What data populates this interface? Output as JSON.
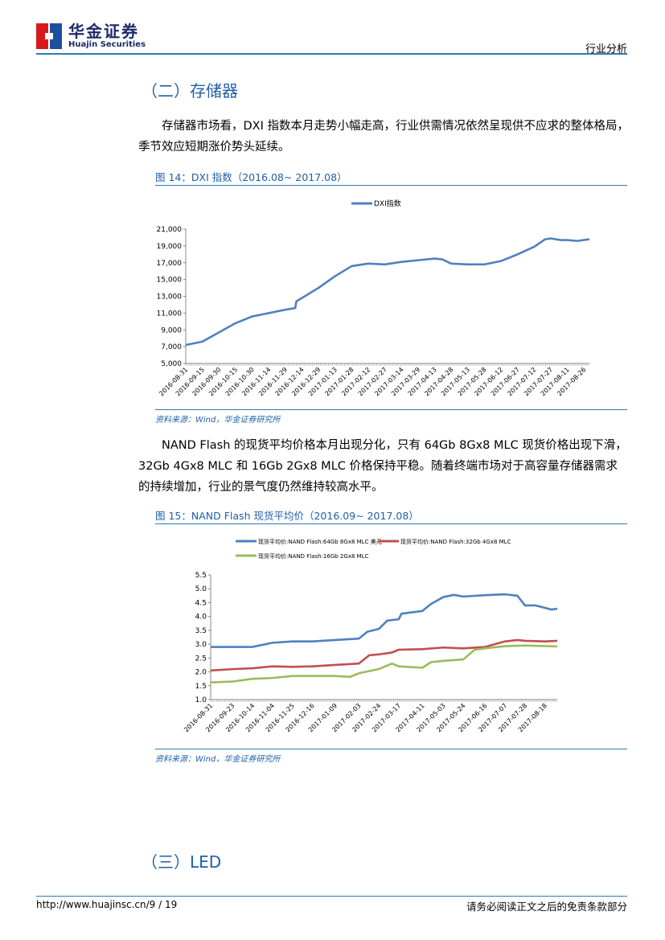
{
  "header": {
    "logo_cn": "华金证券",
    "logo_en": "Huajin Securities",
    "section": "行业分析"
  },
  "section2": {
    "title": "（二）存储器",
    "para": "存储器市场看，DXI 指数本月走势小幅走高，行业供需情况依然呈现供不应求的整体格局，季节效应短期涨价势头延续。"
  },
  "fig14": {
    "caption": "图 14：DXI 指数（2016.08~ 2017.08）",
    "source": "资料来源：Wind，华金证券研究所"
  },
  "para2": "NAND Flash 的现货平均价格本月出现分化，只有 64Gb 8Gx8 MLC 现货价格出现下滑，32Gb 4Gx8 MLC 和 16Gb 2Gx8 MLC 价格保持平稳。随着终端市场对于高容量存储器需求的持续增加，行业的景气度仍然维持较高水平。",
  "fig15": {
    "caption": "图 15：NAND Flash 现货平均价（2016.09~ 2017.08）",
    "source": "资料来源：Wind，华金证券研究所"
  },
  "section3": {
    "title": "（三）LED"
  },
  "footer": {
    "url": "http://www.huajinsc.cn/9 / 19",
    "disclaimer": "请务必阅读正文之后的免责条款部分"
  },
  "chart_data": [
    {
      "type": "line",
      "legend_position": "top",
      "grid": false,
      "ylim": [
        5000,
        21000
      ],
      "yticks": [
        "5,000",
        "7,000",
        "9,000",
        "11,000",
        "13,000",
        "15,000",
        "17,000",
        "19,000",
        "21,000"
      ],
      "xticks": [
        "2016-08-31",
        "2016-09-15",
        "2016-09-30",
        "2016-10-15",
        "2016-10-30",
        "2016-11-14",
        "2016-11-29",
        "2016-12-14",
        "2016-12-29",
        "2017-01-13",
        "2017-01-28",
        "2017-02-12",
        "2017-02-27",
        "2017-03-14",
        "2017-03-29",
        "2017-04-13",
        "2017-04-28",
        "2017-05-13",
        "2017-05-28",
        "2017-06-12",
        "2017-06-27",
        "2017-07-12",
        "2017-07-27",
        "2017-08-11",
        "2017-08-26"
      ],
      "x_range": [
        "2016-08-31",
        "2017-08-31"
      ],
      "series": [
        {
          "name": "DXI指数",
          "color": "#4f81bd",
          "points": [
            [
              "2016-08-31",
              7200
            ],
            [
              "2016-09-15",
              7600
            ],
            [
              "2016-09-30",
              8700
            ],
            [
              "2016-10-15",
              9800
            ],
            [
              "2016-10-30",
              10600
            ],
            [
              "2016-11-14",
              11000
            ],
            [
              "2016-11-29",
              11400
            ],
            [
              "2016-12-08",
              11600
            ],
            [
              "2016-12-09",
              12400
            ],
            [
              "2016-12-14",
              12800
            ],
            [
              "2016-12-29",
              14000
            ],
            [
              "2017-01-13",
              15400
            ],
            [
              "2017-01-28",
              16600
            ],
            [
              "2017-02-12",
              16900
            ],
            [
              "2017-02-27",
              16800
            ],
            [
              "2017-03-14",
              17100
            ],
            [
              "2017-03-29",
              17300
            ],
            [
              "2017-04-13",
              17500
            ],
            [
              "2017-04-20",
              17400
            ],
            [
              "2017-04-28",
              16900
            ],
            [
              "2017-05-13",
              16800
            ],
            [
              "2017-05-28",
              16800
            ],
            [
              "2017-06-12",
              17200
            ],
            [
              "2017-06-27",
              18000
            ],
            [
              "2017-07-12",
              18900
            ],
            [
              "2017-07-22",
              19800
            ],
            [
              "2017-07-27",
              19900
            ],
            [
              "2017-08-05",
              19700
            ],
            [
              "2017-08-11",
              19700
            ],
            [
              "2017-08-20",
              19600
            ],
            [
              "2017-08-31",
              19800
            ]
          ]
        }
      ]
    },
    {
      "type": "line",
      "legend_position": "top",
      "grid": false,
      "ylim": [
        1.0,
        5.5
      ],
      "yticks": [
        "1.0",
        "1.5",
        "2.0",
        "2.5",
        "3.0",
        "3.5",
        "4.0",
        "4.5",
        "5.0",
        "5.5"
      ],
      "xticks": [
        "2016-08-31",
        "2016-09-23",
        "2016-10-14",
        "2016-11-04",
        "2016-11-25",
        "2016-12-16",
        "2017-01-09",
        "2017-02-03",
        "2017-02-24",
        "2017-03-17",
        "2017-04-11",
        "2017-05-03",
        "2017-05-24",
        "2017-06-16",
        "2017-07-07",
        "2017-07-28",
        "2017-08-18"
      ],
      "x_range": [
        "2016-08-31",
        "2017-08-31"
      ],
      "series": [
        {
          "name": "现货平均价:NAND Flash:64Gb 8Gx8 MLC 美元",
          "color": "#4f81bd",
          "points": [
            [
              "2016-08-31",
              2.9
            ],
            [
              "2016-09-23",
              2.9
            ],
            [
              "2016-10-14",
              2.9
            ],
            [
              "2016-11-04",
              3.05
            ],
            [
              "2016-11-25",
              3.1
            ],
            [
              "2016-12-16",
              3.1
            ],
            [
              "2017-01-09",
              3.15
            ],
            [
              "2017-02-03",
              3.2
            ],
            [
              "2017-02-12",
              3.45
            ],
            [
              "2017-02-24",
              3.55
            ],
            [
              "2017-03-05",
              3.85
            ],
            [
              "2017-03-17",
              3.9
            ],
            [
              "2017-03-20",
              4.1
            ],
            [
              "2017-04-11",
              4.2
            ],
            [
              "2017-04-20",
              4.45
            ],
            [
              "2017-05-03",
              4.7
            ],
            [
              "2017-05-14",
              4.78
            ],
            [
              "2017-05-24",
              4.72
            ],
            [
              "2017-06-16",
              4.77
            ],
            [
              "2017-07-07",
              4.8
            ],
            [
              "2017-07-20",
              4.75
            ],
            [
              "2017-07-28",
              4.4
            ],
            [
              "2017-08-08",
              4.4
            ],
            [
              "2017-08-25",
              4.25
            ],
            [
              "2017-08-31",
              4.28
            ]
          ]
        },
        {
          "name": "现货平均价:NAND Flash:32Gb 4Gx8 MLC",
          "color": "#c0504d",
          "points": [
            [
              "2016-08-31",
              2.05
            ],
            [
              "2016-09-23",
              2.1
            ],
            [
              "2016-10-14",
              2.13
            ],
            [
              "2016-11-04",
              2.2
            ],
            [
              "2016-11-25",
              2.18
            ],
            [
              "2016-12-16",
              2.2
            ],
            [
              "2017-01-09",
              2.25
            ],
            [
              "2017-02-03",
              2.3
            ],
            [
              "2017-02-14",
              2.6
            ],
            [
              "2017-02-24",
              2.63
            ],
            [
              "2017-03-10",
              2.7
            ],
            [
              "2017-03-17",
              2.8
            ],
            [
              "2017-04-11",
              2.82
            ],
            [
              "2017-05-03",
              2.88
            ],
            [
              "2017-05-24",
              2.85
            ],
            [
              "2017-06-16",
              2.9
            ],
            [
              "2017-07-07",
              3.1
            ],
            [
              "2017-07-20",
              3.15
            ],
            [
              "2017-07-28",
              3.12
            ],
            [
              "2017-08-18",
              3.1
            ],
            [
              "2017-08-31",
              3.12
            ]
          ]
        },
        {
          "name": "现货平均价:NAND Flash:16Gb 2Gx8 MLC",
          "color": "#9bbb59",
          "points": [
            [
              "2016-08-31",
              1.62
            ],
            [
              "2016-09-23",
              1.65
            ],
            [
              "2016-10-14",
              1.75
            ],
            [
              "2016-11-04",
              1.78
            ],
            [
              "2016-11-25",
              1.85
            ],
            [
              "2016-12-16",
              1.85
            ],
            [
              "2017-01-09",
              1.85
            ],
            [
              "2017-01-25",
              1.82
            ],
            [
              "2017-02-03",
              1.95
            ],
            [
              "2017-02-24",
              2.1
            ],
            [
              "2017-03-10",
              2.3
            ],
            [
              "2017-03-17",
              2.2
            ],
            [
              "2017-04-11",
              2.15
            ],
            [
              "2017-04-20",
              2.35
            ],
            [
              "2017-05-03",
              2.4
            ],
            [
              "2017-05-24",
              2.45
            ],
            [
              "2017-06-05",
              2.8
            ],
            [
              "2017-06-16",
              2.85
            ],
            [
              "2017-07-07",
              2.93
            ],
            [
              "2017-07-28",
              2.95
            ],
            [
              "2017-08-31",
              2.92
            ]
          ]
        }
      ]
    }
  ]
}
